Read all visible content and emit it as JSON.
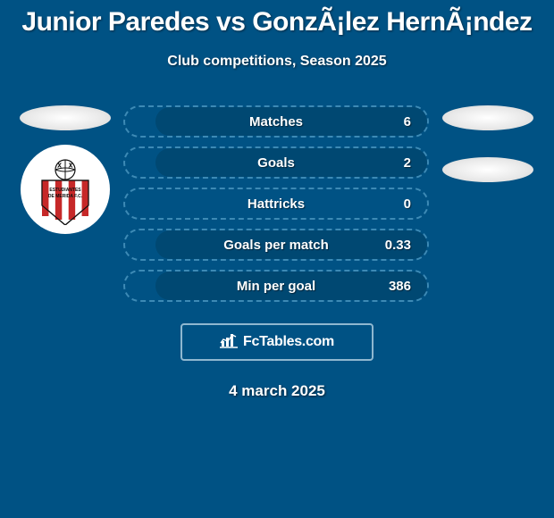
{
  "title": "Junior Paredes vs GonzÃ¡lez HernÃ¡ndez",
  "subtitle": "Club competitions, Season 2025",
  "date": "4 march 2025",
  "brand": "FcTables.com",
  "colors": {
    "page_bg": "#005284",
    "bar_border": "#3d8ab5",
    "bar_fill": "#004872",
    "text": "#ffffff",
    "brand_border": "#8fb8d0"
  },
  "stats": [
    {
      "label": "Matches",
      "value": "6",
      "fill_pct": 90
    },
    {
      "label": "Goals",
      "value": "2",
      "fill_pct": 90
    },
    {
      "label": "Hattricks",
      "value": "0",
      "fill_pct": 0
    },
    {
      "label": "Goals per match",
      "value": "0.33",
      "fill_pct": 90
    },
    {
      "label": "Min per goal",
      "value": "386",
      "fill_pct": 90
    }
  ],
  "left_badge": "Estudiantes de Mérida FC"
}
